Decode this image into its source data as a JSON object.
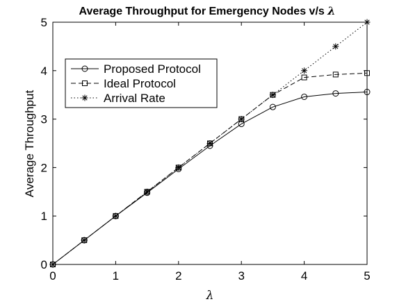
{
  "chart_data": {
    "type": "line",
    "title": "Average Throughput for Emergency Nodes v/s",
    "title_symbol": "λ",
    "xlabel": "λ",
    "ylabel": "Average Throughput",
    "xlim": [
      0,
      5
    ],
    "ylim": [
      0,
      5
    ],
    "xticks": [
      "0",
      "1",
      "2",
      "3",
      "4",
      "5"
    ],
    "yticks": [
      "0",
      "1",
      "2",
      "3",
      "4",
      "5"
    ],
    "grid": false,
    "legend_position": "upper-left",
    "x": [
      0,
      0.5,
      1,
      1.5,
      2,
      2.5,
      3,
      3.5,
      4,
      4.5,
      5
    ],
    "series": [
      {
        "name": "Proposed Protocol",
        "marker": "circle",
        "line": "solid",
        "values": [
          0,
          0.5,
          1,
          1.48,
          1.97,
          2.45,
          2.9,
          3.25,
          3.46,
          3.53,
          3.56
        ]
      },
      {
        "name": "Ideal Protocol",
        "marker": "square",
        "line": "dashed",
        "values": [
          0,
          0.5,
          1,
          1.5,
          2,
          2.5,
          3,
          3.5,
          3.86,
          3.92,
          3.95
        ]
      },
      {
        "name": "Arrival Rate",
        "marker": "asterisk",
        "line": "dotted",
        "values": [
          0,
          0.5,
          1,
          1.5,
          2,
          2.5,
          3,
          3.5,
          4,
          4.5,
          5
        ]
      }
    ],
    "colors": {
      "line": "#000000",
      "background": "#ffffff"
    }
  }
}
